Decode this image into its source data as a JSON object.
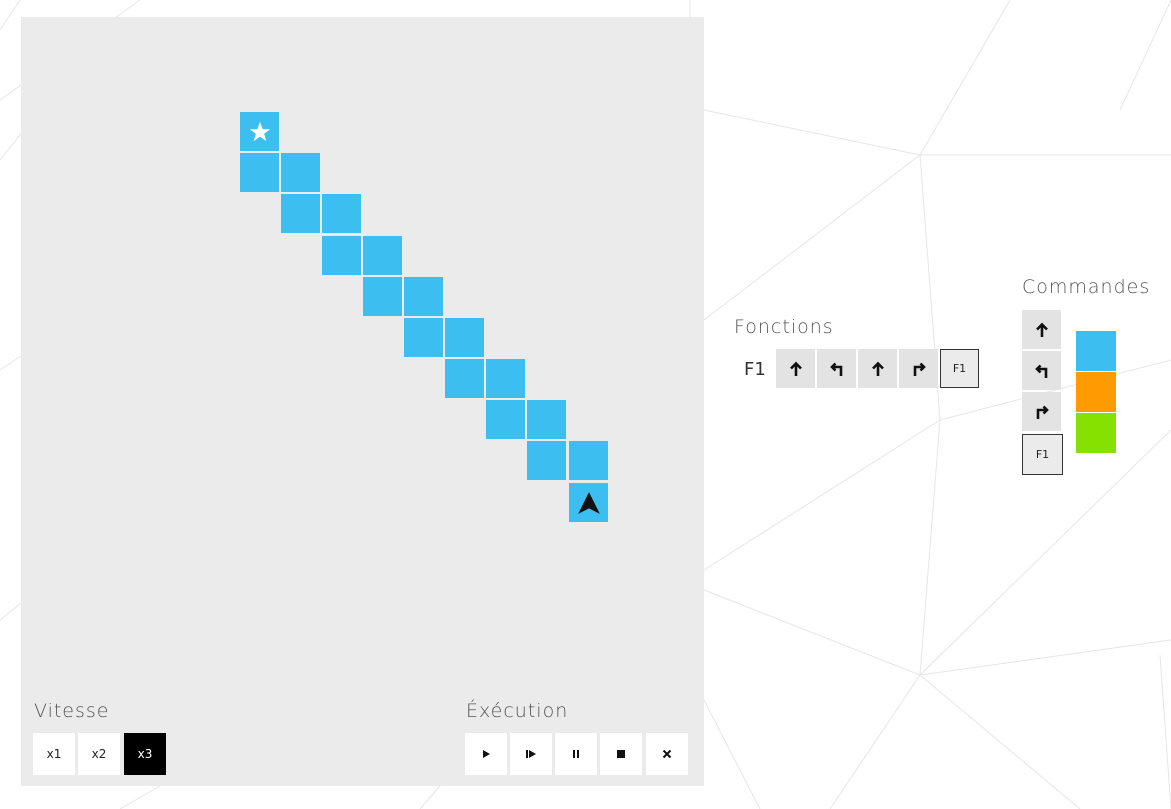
{
  "board": {
    "path_color": "#3dbef0",
    "start_icon": "star-icon",
    "robot_icon": "robot-arrow-icon"
  },
  "speed": {
    "label": "Vitesse",
    "options": [
      "x1",
      "x2",
      "x3"
    ],
    "selected": "x3"
  },
  "execution": {
    "label": "Éxécution",
    "buttons": [
      "play-icon",
      "step-icon",
      "pause-icon",
      "stop-icon",
      "close-icon"
    ]
  },
  "functions": {
    "label": "Fonctions",
    "f1_label": "F1",
    "f1_slots": [
      "arrow-up-icon",
      "turn-left-icon",
      "arrow-up-icon",
      "turn-right-icon",
      "F1"
    ],
    "f1_call_label": "F1"
  },
  "commands": {
    "label": "Commandes",
    "items": [
      "arrow-up-icon",
      "turn-left-icon",
      "turn-right-icon",
      "F1"
    ],
    "f1_label": "F1",
    "colors": [
      "#3dbef0",
      "#ff9b00",
      "#86e000"
    ]
  }
}
